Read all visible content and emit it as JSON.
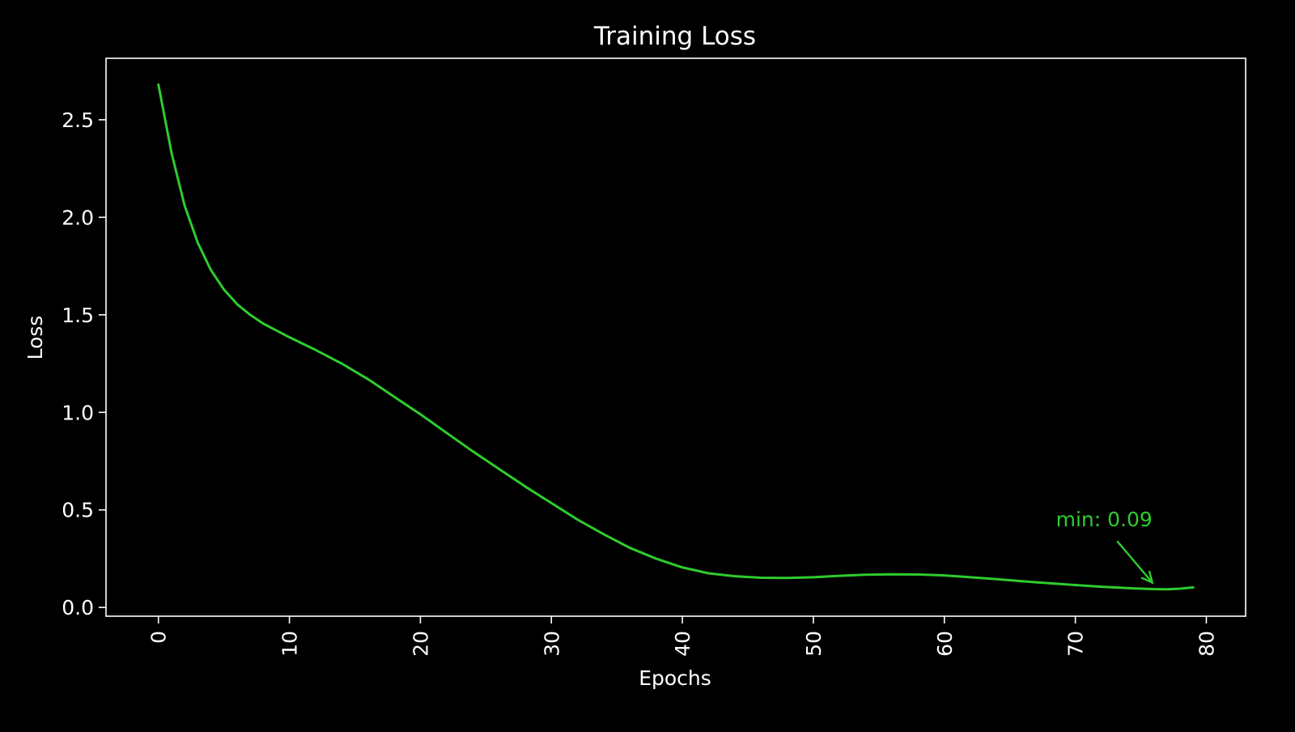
{
  "chart_data": {
    "type": "line",
    "title": "Training Loss",
    "xlabel": "Epochs",
    "ylabel": "Loss",
    "xlim": [
      -4,
      83
    ],
    "ylim": [
      -0.045,
      2.815
    ],
    "x_ticks": [
      0,
      10,
      20,
      30,
      40,
      50,
      60,
      70,
      80
    ],
    "x_tick_labels": [
      "0",
      "10",
      "20",
      "30",
      "40",
      "50",
      "60",
      "70",
      "80"
    ],
    "y_ticks": [
      0.0,
      0.5,
      1.0,
      1.5,
      2.0,
      2.5
    ],
    "y_tick_labels": [
      "0.0",
      "0.5",
      "1.0",
      "1.5",
      "2.0",
      "2.5"
    ],
    "grid": false,
    "legend": "none",
    "series": [
      {
        "color": "#2ecc2e",
        "points": [
          [
            0,
            2.68
          ],
          [
            1,
            2.33
          ],
          [
            2,
            2.06
          ],
          [
            3,
            1.87
          ],
          [
            4,
            1.73
          ],
          [
            5,
            1.63
          ],
          [
            6,
            1.555
          ],
          [
            7,
            1.5
          ],
          [
            8,
            1.455
          ],
          [
            9,
            1.42
          ],
          [
            10,
            1.385
          ],
          [
            12,
            1.32
          ],
          [
            14,
            1.25
          ],
          [
            16,
            1.17
          ],
          [
            18,
            1.08
          ],
          [
            20,
            0.99
          ],
          [
            22,
            0.895
          ],
          [
            24,
            0.8
          ],
          [
            26,
            0.71
          ],
          [
            28,
            0.62
          ],
          [
            30,
            0.535
          ],
          [
            32,
            0.45
          ],
          [
            34,
            0.375
          ],
          [
            36,
            0.305
          ],
          [
            38,
            0.25
          ],
          [
            40,
            0.205
          ],
          [
            42,
            0.175
          ],
          [
            44,
            0.16
          ],
          [
            46,
            0.152
          ],
          [
            48,
            0.151
          ],
          [
            50,
            0.155
          ],
          [
            52,
            0.162
          ],
          [
            54,
            0.168
          ],
          [
            56,
            0.17
          ],
          [
            58,
            0.169
          ],
          [
            60,
            0.164
          ],
          [
            62,
            0.155
          ],
          [
            64,
            0.145
          ],
          [
            66,
            0.134
          ],
          [
            68,
            0.124
          ],
          [
            70,
            0.115
          ],
          [
            72,
            0.106
          ],
          [
            74,
            0.099
          ],
          [
            76,
            0.094
          ],
          [
            77,
            0.093
          ],
          [
            78,
            0.096
          ],
          [
            79,
            0.103
          ]
        ]
      }
    ],
    "annotation": {
      "text": "min: 0.09",
      "x": 76,
      "y": 0.094,
      "text_x": 72.2,
      "text_y": 0.39,
      "color": "#2ecc2e"
    },
    "colors": {
      "background": "#000000",
      "axes": "#ffffff",
      "text": "#ffffff",
      "line": "#2ecc2e"
    }
  }
}
